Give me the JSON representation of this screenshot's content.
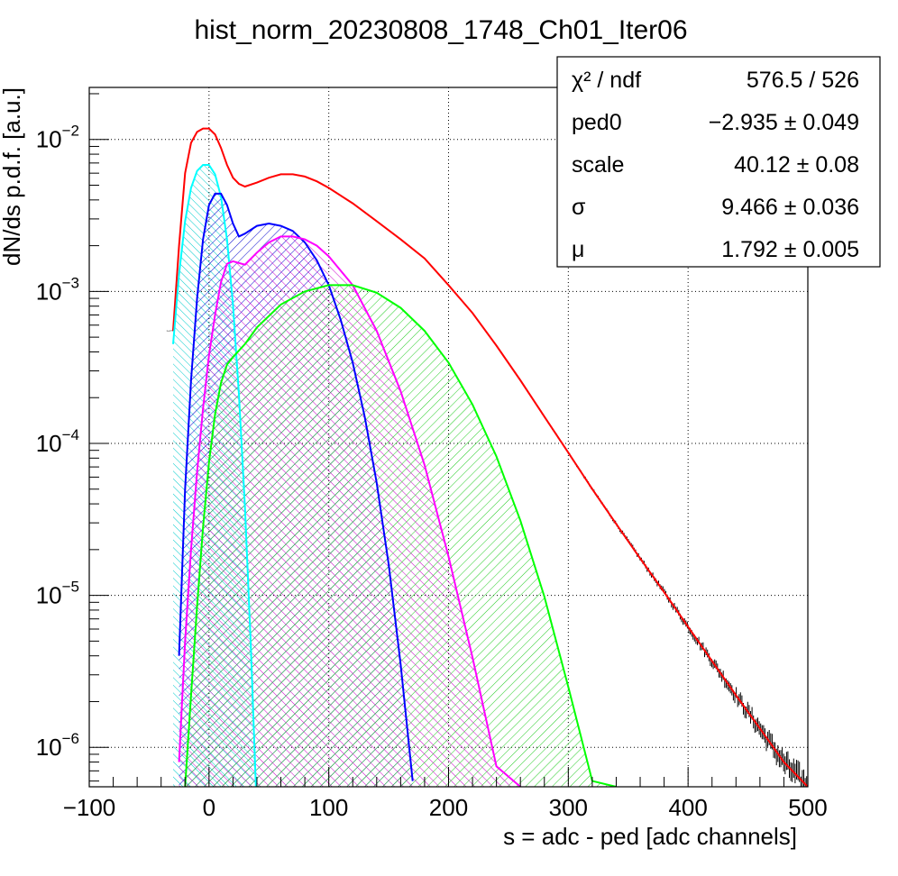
{
  "chart_data": {
    "type": "line",
    "title": "hist_norm_20230808_1748_Ch01_Iter06",
    "xlabel": "s = adc - ped [adc channels]",
    "ylabel": "dN/ds p.d.f. [a.u.]",
    "xlim": [
      -100,
      500
    ],
    "ylim": [
      5.5e-07,
      0.022
    ],
    "yscale": "log",
    "grid": true,
    "xticks": [
      -100,
      0,
      100,
      200,
      300,
      400,
      500
    ],
    "xtick_labels": [
      "−100",
      "0",
      "100",
      "200",
      "300",
      "400",
      "500"
    ],
    "yticks": [
      {
        "value": 1e-06,
        "base": "10",
        "exp": "−6"
      },
      {
        "value": 1e-05,
        "base": "10",
        "exp": "−5"
      },
      {
        "value": 0.0001,
        "base": "10",
        "exp": "−4"
      },
      {
        "value": 0.001,
        "base": "10",
        "exp": "−3"
      },
      {
        "value": 0.01,
        "base": "10",
        "exp": "−2"
      }
    ],
    "stats_box": {
      "position": "top-right",
      "rows": [
        {
          "label": "χ² / ndf",
          "value": "576.5 / 526"
        },
        {
          "label": "ped0",
          "value": "−2.935 ± 0.049"
        },
        {
          "label": "scale",
          "value": "40.12 ± 0.08"
        },
        {
          "label": "σ",
          "value": "9.466 ± 0.036"
        },
        {
          "label": "μ",
          "value": "1.792 ± 0.005"
        }
      ]
    },
    "colors": {
      "data": "#000000",
      "fit_total": "#ff0000",
      "component_0": "#00ffff",
      "component_1": "#0000ff",
      "component_2": "#ff00ff",
      "component_3": "#00ff00"
    },
    "series": [
      {
        "role": "fit_total",
        "color": "#ff0000",
        "points": [
          [
            -30,
            0.00055
          ],
          [
            -25,
            0.002
          ],
          [
            -20,
            0.006
          ],
          [
            -15,
            0.0095
          ],
          [
            -10,
            0.0112
          ],
          [
            -5,
            0.0118
          ],
          [
            0,
            0.0118
          ],
          [
            5,
            0.0108
          ],
          [
            10,
            0.0088
          ],
          [
            15,
            0.0068
          ],
          [
            20,
            0.0056
          ],
          [
            25,
            0.0051
          ],
          [
            30,
            0.0049
          ],
          [
            40,
            0.0052
          ],
          [
            50,
            0.0056
          ],
          [
            60,
            0.0059
          ],
          [
            70,
            0.0059
          ],
          [
            80,
            0.0057
          ],
          [
            90,
            0.0053
          ],
          [
            100,
            0.0048
          ],
          [
            120,
            0.0038
          ],
          [
            140,
            0.0029
          ],
          [
            160,
            0.0022
          ],
          [
            180,
            0.00165
          ],
          [
            200,
            0.0011
          ],
          [
            220,
            0.00072
          ],
          [
            240,
            0.00044
          ],
          [
            260,
            0.00026
          ],
          [
            280,
            0.00015
          ],
          [
            300,
            8.7e-05
          ],
          [
            320,
            5e-05
          ],
          [
            340,
            2.95e-05
          ],
          [
            360,
            1.75e-05
          ],
          [
            380,
            1.05e-05
          ],
          [
            400,
            6.2e-06
          ],
          [
            420,
            3.7e-06
          ],
          [
            440,
            2.2e-06
          ],
          [
            460,
            1.33e-06
          ],
          [
            480,
            8e-07
          ],
          [
            500,
            5.5e-07
          ]
        ]
      },
      {
        "role": "component",
        "color": "#00ffff",
        "points": [
          [
            -30,
            0.00045
          ],
          [
            -25,
            0.0013
          ],
          [
            -20,
            0.0029
          ],
          [
            -15,
            0.0048
          ],
          [
            -10,
            0.0062
          ],
          [
            -5,
            0.0068
          ],
          [
            0,
            0.0068
          ],
          [
            5,
            0.0059
          ],
          [
            10,
            0.0042
          ],
          [
            15,
            0.0022
          ],
          [
            20,
            0.00082
          ],
          [
            25,
            0.00021
          ],
          [
            30,
            3.8e-05
          ],
          [
            35,
            4.5e-06
          ],
          [
            40,
            3.5e-07
          ]
        ]
      },
      {
        "role": "component",
        "color": "#0000ff",
        "points": [
          [
            -25,
            4e-06
          ],
          [
            -20,
            5e-05
          ],
          [
            -15,
            0.00026
          ],
          [
            -10,
            0.0009
          ],
          [
            -5,
            0.0022
          ],
          [
            0,
            0.0037
          ],
          [
            5,
            0.0044
          ],
          [
            10,
            0.0044
          ],
          [
            15,
            0.0037
          ],
          [
            20,
            0.0028
          ],
          [
            25,
            0.0023
          ],
          [
            30,
            0.0024
          ],
          [
            40,
            0.0027
          ],
          [
            50,
            0.0028
          ],
          [
            60,
            0.0027
          ],
          [
            70,
            0.0025
          ],
          [
            80,
            0.0021
          ],
          [
            90,
            0.0016
          ],
          [
            100,
            0.0011
          ],
          [
            110,
            0.00065
          ],
          [
            120,
            0.00034
          ],
          [
            130,
            0.00015
          ],
          [
            140,
            5.5e-05
          ],
          [
            150,
            1.6e-05
          ],
          [
            160,
            3.5e-06
          ],
          [
            170,
            6e-07
          ]
        ]
      },
      {
        "role": "component",
        "color": "#ff00ff",
        "points": [
          [
            -25,
            8e-07
          ],
          [
            -20,
            5e-06
          ],
          [
            -15,
            2e-05
          ],
          [
            -10,
            6.5e-05
          ],
          [
            -5,
            0.00017
          ],
          [
            0,
            0.00038
          ],
          [
            5,
            0.0007
          ],
          [
            10,
            0.00115
          ],
          [
            15,
            0.00152
          ],
          [
            20,
            0.00158
          ],
          [
            30,
            0.0015
          ],
          [
            40,
            0.0018
          ],
          [
            50,
            0.0021
          ],
          [
            60,
            0.0023
          ],
          [
            70,
            0.0023
          ],
          [
            80,
            0.0022
          ],
          [
            90,
            0.002
          ],
          [
            100,
            0.0017
          ],
          [
            120,
            0.0011
          ],
          [
            140,
            0.00055
          ],
          [
            160,
            0.00022
          ],
          [
            180,
            7.2e-05
          ],
          [
            200,
            1.8e-05
          ],
          [
            220,
            3.9e-06
          ],
          [
            240,
            7.5e-07
          ],
          [
            260,
            5.5e-07
          ]
        ]
      },
      {
        "role": "component",
        "color": "#00ff00",
        "points": [
          [
            -20,
            5.5e-07
          ],
          [
            -15,
            2.2e-06
          ],
          [
            -10,
            8.5e-06
          ],
          [
            -5,
            2.8e-05
          ],
          [
            0,
            7.5e-05
          ],
          [
            5,
            0.000155
          ],
          [
            10,
            0.00025
          ],
          [
            15,
            0.00033
          ],
          [
            20,
            0.00037
          ],
          [
            30,
            0.00045
          ],
          [
            40,
            0.00058
          ],
          [
            60,
            0.00082
          ],
          [
            80,
            0.001
          ],
          [
            100,
            0.0011
          ],
          [
            120,
            0.0011
          ],
          [
            140,
            0.00098
          ],
          [
            160,
            0.00078
          ],
          [
            180,
            0.00055
          ],
          [
            200,
            0.00034
          ],
          [
            220,
            0.00018
          ],
          [
            240,
            8.2e-05
          ],
          [
            260,
            3.1e-05
          ],
          [
            280,
            9.8e-06
          ],
          [
            300,
            2.5e-06
          ],
          [
            320,
            6e-07
          ],
          [
            340,
            5.5e-07
          ]
        ]
      }
    ]
  }
}
